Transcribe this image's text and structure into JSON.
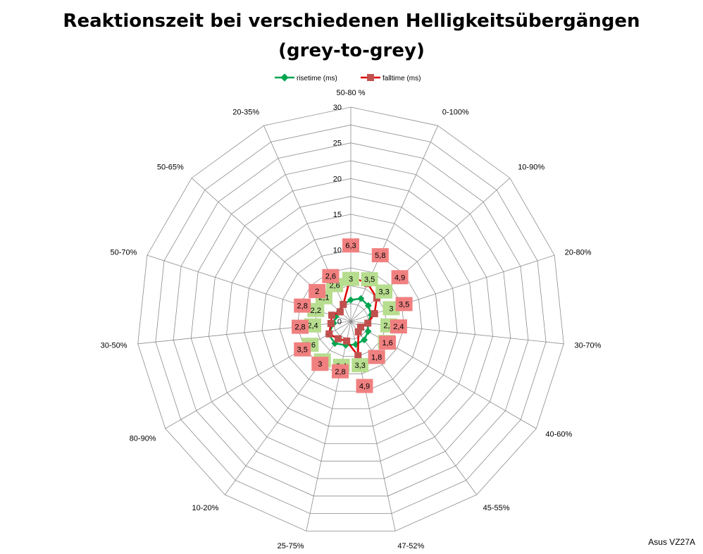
{
  "chart_data": {
    "type": "radar",
    "title_lines": [
      "Reaktionszeit bei verschiedenen Helligkeitsübergängen",
      "(grey-to-grey)"
    ],
    "categories": [
      "50-80 %",
      "0-100%",
      "10-90%",
      "20-80%",
      "30-70%",
      "40-60%",
      "45-55%",
      "47-52%",
      "25-75%",
      "10-20%",
      "80-90%",
      "30-50%",
      "50-70%",
      "50-65%",
      "20-35%"
    ],
    "rlim": [
      0,
      30
    ],
    "ticks": [
      "0",
      "5",
      "10",
      "15",
      "20",
      "25",
      "30"
    ],
    "tick_values": [
      0,
      5,
      10,
      15,
      20,
      25,
      30
    ],
    "series": [
      {
        "name": "risetime (ms)",
        "color": "#00a550",
        "label_color": "#b7dd8f",
        "values": [
          3,
          3.5,
          3.3,
          3,
          2.4,
          2.8,
          3.2,
          3.3,
          3.4,
          3.8,
          3.6,
          2.4,
          2.2,
          2.1,
          2.6
        ],
        "labels": [
          "3",
          "3,5",
          "3,3",
          "3",
          "2,4",
          "2,8",
          "3,2",
          "3,3",
          "3,4",
          "3,8",
          "3,6",
          "2,4",
          "2,2",
          "2,1",
          "2,6"
        ]
      },
      {
        "name": "falltime (ms)",
        "color": "#e00000",
        "marker_color": "#c0504d",
        "label_color": "#f08080",
        "values": [
          6.3,
          5.8,
          4.9,
          3.5,
          2.4,
          1.6,
          1.8,
          4.9,
          2.8,
          3.0,
          3.5,
          2.8,
          2.8,
          2.0,
          2.6
        ],
        "labels": [
          "6,3",
          "5,8",
          "4,9",
          "3,5",
          "2,4",
          "1,6",
          "1,8",
          "4,9",
          "2,8",
          "3",
          "3,5",
          "2,8",
          "2,8",
          "2",
          "2,6"
        ]
      }
    ],
    "legend_position": "top",
    "grid": true
  },
  "credit": "Asus VZ27A"
}
